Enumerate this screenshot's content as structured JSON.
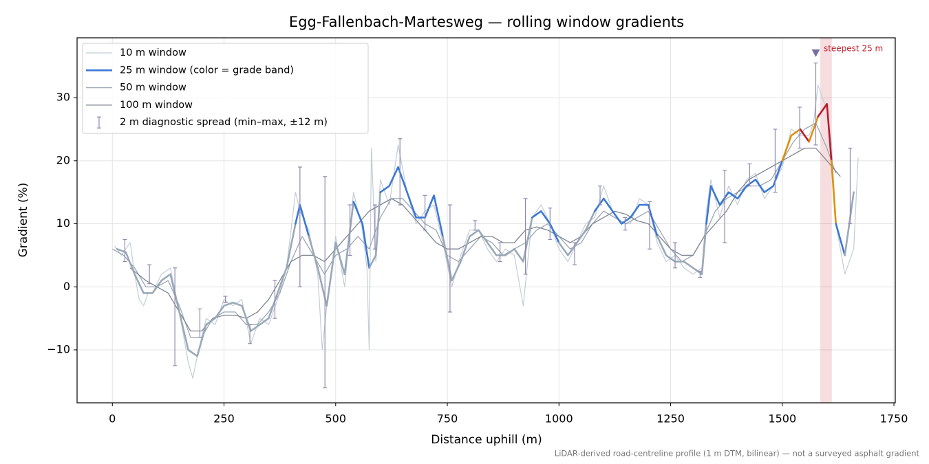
{
  "chart_data": {
    "type": "line",
    "title": "Egg-Fallenbach-Martesweg — rolling window gradients",
    "xlabel": "Distance uphill (m)",
    "ylabel": "Gradient (%)",
    "footnote": "LiDAR-derived road-centreline profile (1 m DTM, bilinear) — not a surveyed asphalt gradient",
    "xlim": [
      -79,
      1753
    ],
    "ylim": [
      -18.4,
      39.5
    ],
    "xticks": [
      0,
      250,
      500,
      750,
      1000,
      1250,
      1500,
      1750
    ],
    "yticks": [
      {
        "value": -10,
        "label": "−10"
      },
      0,
      10,
      20,
      30
    ],
    "grid": true,
    "legend": "upper left",
    "series": [
      {
        "name": "10 m window",
        "color": "#c3ccd6",
        "width": 1.2,
        "x": [
          5,
          20,
          30,
          40,
          50,
          60,
          70,
          80,
          90,
          110,
          130,
          150,
          170,
          180,
          190,
          210,
          230,
          250,
          270,
          290,
          310,
          330,
          350,
          370,
          390,
          410,
          420,
          440,
          460,
          470,
          480,
          500,
          520,
          540,
          560,
          570,
          575,
          580,
          590,
          600,
          620,
          640,
          660,
          680,
          700,
          720,
          740,
          760,
          780,
          800,
          820,
          840,
          860,
          880,
          900,
          920,
          940,
          960,
          980,
          1000,
          1020,
          1040,
          1060,
          1080,
          1100,
          1120,
          1140,
          1160,
          1180,
          1200,
          1220,
          1240,
          1260,
          1280,
          1300,
          1320,
          1330,
          1340,
          1360,
          1380,
          1400,
          1420,
          1440,
          1460,
          1480,
          1500,
          1520,
          1540,
          1560,
          1570,
          1580,
          1600,
          1610,
          1620,
          1640,
          1660,
          1670
        ],
        "values": [
          6.5,
          5,
          6,
          7,
          2,
          -2,
          -3,
          -1,
          -1,
          2,
          3,
          -4,
          -12,
          -14.5,
          -11,
          -5,
          -6,
          -2,
          -3,
          -2,
          -9,
          -5,
          -6,
          -2,
          3,
          15,
          12,
          9,
          2,
          -10,
          -3,
          8,
          0,
          15,
          9,
          3,
          -10,
          22,
          4,
          17,
          13,
          22.5,
          15,
          10,
          12,
          13,
          7,
          0,
          5,
          9,
          9,
          6,
          4,
          6,
          5,
          -3,
          11,
          13,
          10,
          6,
          4,
          7,
          10,
          11,
          16,
          12,
          10,
          10,
          14,
          13,
          7,
          4,
          5,
          3,
          2,
          3,
          12,
          17,
          11,
          16,
          13,
          17,
          18,
          14,
          16,
          19,
          25,
          24,
          24,
          26,
          32,
          28,
          23,
          10,
          2,
          6,
          20.5
        ]
      },
      {
        "name": "25 m window (color = grade band)",
        "color": "#3a78d4",
        "width": 2.6,
        "bands": [
          {
            "min": -100,
            "color": "#9aa9b8"
          },
          {
            "min": 10,
            "color": "#3a78d4"
          },
          {
            "min": 20,
            "color": "#e0900a"
          },
          {
            "min": 25,
            "color": "#b81c2c"
          }
        ],
        "x": [
          10,
          30,
          50,
          70,
          90,
          110,
          130,
          150,
          170,
          190,
          210,
          230,
          250,
          270,
          290,
          310,
          330,
          350,
          370,
          390,
          410,
          420,
          440,
          460,
          480,
          500,
          520,
          540,
          560,
          575,
          590,
          600,
          620,
          640,
          660,
          680,
          700,
          720,
          740,
          760,
          780,
          800,
          820,
          840,
          860,
          880,
          900,
          920,
          940,
          960,
          980,
          1000,
          1020,
          1040,
          1060,
          1080,
          1100,
          1120,
          1140,
          1160,
          1180,
          1200,
          1220,
          1240,
          1260,
          1280,
          1300,
          1320,
          1330,
          1340,
          1360,
          1380,
          1400,
          1420,
          1440,
          1460,
          1480,
          1500,
          1520,
          1540,
          1560,
          1580,
          1600,
          1610,
          1620,
          1640,
          1660
        ],
        "values": [
          6,
          5.5,
          2,
          -1,
          -1,
          1,
          2,
          -4,
          -10,
          -11,
          -6,
          -5,
          -3,
          -2.5,
          -3,
          -7,
          -6,
          -5,
          -1,
          3,
          10,
          13,
          8,
          3,
          -3,
          7,
          2,
          13.5,
          10,
          3,
          5,
          15,
          16,
          19,
          15,
          11,
          11,
          14.5,
          8,
          1,
          4,
          8,
          9,
          7,
          5,
          5,
          6,
          4,
          11,
          12,
          10,
          7,
          5,
          7,
          9,
          12,
          14,
          12,
          10,
          11,
          13,
          13,
          8,
          5,
          4,
          4,
          3,
          2,
          10,
          16,
          13,
          15,
          14,
          16,
          17,
          15,
          16,
          20,
          24,
          25,
          23,
          27,
          29,
          20,
          10,
          5,
          15
        ]
      },
      {
        "name": "50 m window",
        "color": "#9aa6b4",
        "width": 1.3,
        "x": [
          0,
          25,
          50,
          75,
          100,
          125,
          150,
          175,
          200,
          225,
          250,
          275,
          300,
          325,
          350,
          375,
          400,
          425,
          450,
          475,
          500,
          525,
          550,
          575,
          600,
          625,
          650,
          675,
          700,
          725,
          750,
          775,
          800,
          825,
          850,
          875,
          900,
          925,
          950,
          975,
          1000,
          1025,
          1050,
          1075,
          1100,
          1125,
          1150,
          1175,
          1200,
          1225,
          1250,
          1275,
          1300,
          1325,
          1350,
          1375,
          1400,
          1425,
          1450,
          1475,
          1500,
          1525,
          1550,
          1575,
          1600,
          1620
        ],
        "values": [
          6,
          5,
          3,
          0,
          0,
          1,
          -3,
          -8,
          -8,
          -5,
          -4,
          -4,
          -6,
          -6,
          -4,
          -1,
          4,
          8,
          5,
          2,
          5,
          6,
          8,
          6,
          11,
          14,
          14,
          12,
          10,
          9,
          5,
          4,
          6,
          8,
          7,
          5,
          6,
          7,
          9,
          10,
          8,
          6,
          7,
          10,
          12,
          11,
          10,
          11,
          12,
          9,
          6,
          4,
          5,
          8,
          12,
          14,
          15,
          16,
          16,
          17,
          20,
          23,
          25,
          26,
          22,
          18
        ]
      },
      {
        "name": "100 m window",
        "color": "#7e8590",
        "width": 1.3,
        "x": [
          40,
          75,
          100,
          125,
          150,
          175,
          200,
          225,
          250,
          275,
          300,
          325,
          350,
          375,
          400,
          425,
          450,
          475,
          500,
          525,
          550,
          575,
          600,
          625,
          650,
          675,
          700,
          725,
          750,
          775,
          800,
          825,
          850,
          875,
          900,
          925,
          950,
          975,
          1000,
          1025,
          1050,
          1075,
          1100,
          1125,
          1150,
          1175,
          1200,
          1225,
          1250,
          1275,
          1300,
          1325,
          1350,
          1375,
          1400,
          1425,
          1450,
          1475,
          1500,
          1525,
          1550,
          1575,
          1600,
          1630
        ],
        "values": [
          3,
          1,
          0,
          -1,
          -4,
          -7,
          -7,
          -5,
          -4.5,
          -4.5,
          -5,
          -4,
          -2,
          1,
          4,
          5,
          5,
          4,
          6,
          8,
          10,
          12,
          13,
          14,
          13,
          11,
          9,
          7,
          6,
          6,
          7,
          8,
          8,
          7,
          7,
          9,
          9.5,
          9,
          8,
          7,
          8,
          10,
          11,
          12,
          11.5,
          10.5,
          10,
          8,
          6,
          5,
          5,
          8,
          10,
          12,
          15,
          17,
          18,
          19,
          20,
          21,
          22,
          22,
          20,
          17.5
        ]
      }
    ],
    "spread": {
      "name": "2 m diagnostic spread (min–max, ±12 m)",
      "color": "#9088b0",
      "x": [
        28,
        83,
        140,
        196,
        253,
        308,
        364,
        420,
        476,
        532,
        588,
        644,
        700,
        756,
        812,
        868,
        925,
        980,
        1035,
        1092,
        1148,
        1203,
        1260,
        1316,
        1371,
        1427,
        1484,
        1539,
        1575,
        1652
      ],
      "low": [
        4,
        0.5,
        -12.5,
        -8,
        -2.5,
        -9,
        -5,
        0,
        -16,
        5,
        6,
        13,
        9,
        -4,
        9,
        4,
        2,
        7.5,
        3.5,
        13,
        9,
        6,
        3,
        1.5,
        7,
        16,
        15,
        22,
        22.5,
        10
      ],
      "high": [
        7.5,
        3.5,
        3,
        -3.5,
        -1.5,
        -6,
        1,
        19,
        17.5,
        13,
        13,
        23.5,
        14.5,
        13,
        10.5,
        7,
        14,
        12.5,
        7,
        16,
        11,
        13.5,
        7,
        2.5,
        18.5,
        19.5,
        25,
        28.5,
        35.5,
        22
      ]
    },
    "annotation": {
      "text": "steepest 25 m",
      "x": 1575,
      "y": 37,
      "span": [
        1585,
        1611
      ],
      "color": "#c02030"
    }
  }
}
